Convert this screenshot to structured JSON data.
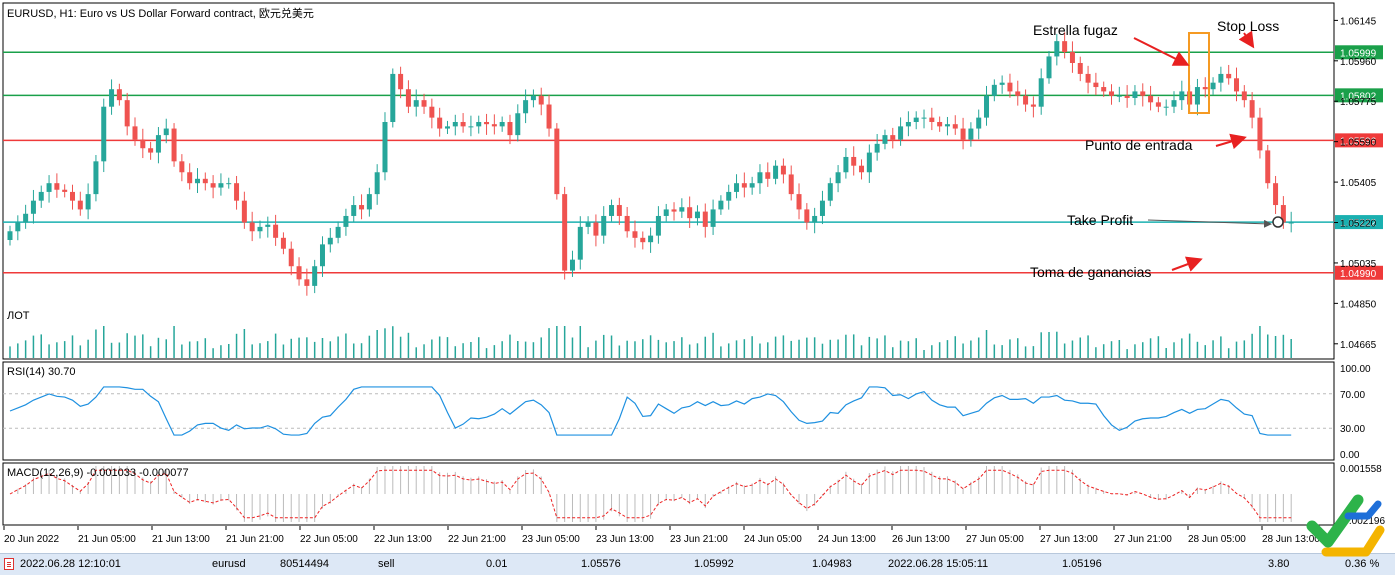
{
  "chart_header": "EURUSD, H1:  Euro vs US Dollar Forward contract, 欧元兑美元",
  "volume_label": "ЛОТ",
  "rsi_label": "RSI(14) 30.70",
  "macd_label": "MACD(12,26,9) -0.001033 -0.000077",
  "colors": {
    "bull": "#26a69a",
    "bear": "#ef5350",
    "green_line": "#1aa04a",
    "red_line": "#ef3a3a",
    "teal_line": "#1ab0b0",
    "rsi": "#1e90e0",
    "macd_signal": "#ee2222",
    "macd_hist": "#bbbbbb",
    "annotation_box": "#f59a23",
    "arrow": "#e82020"
  },
  "price_axis": {
    "ticks": [
      "1.06145",
      "1.05960",
      "1.05775",
      "1.05590",
      "1.05405",
      "1.05220",
      "1.05035",
      "1.04850",
      "1.04665"
    ],
    "ylim": [
      1.046,
      1.0622
    ]
  },
  "rsi_axis": {
    "ticks": [
      "100.00",
      "70.00",
      "30.00",
      "0.00"
    ],
    "levels": [
      70,
      30
    ]
  },
  "macd_axis": {
    "ticks": [
      "0.001558",
      "-0.002196"
    ]
  },
  "horizontal_levels": [
    {
      "price": 1.05999,
      "label": "1.05999",
      "type": "green"
    },
    {
      "price": 1.05802,
      "label": "1.05802",
      "type": "green"
    },
    {
      "price": 1.05596,
      "label": "1.05596",
      "type": "red"
    },
    {
      "price": 1.05222,
      "label": "1.05222",
      "type": "teal"
    },
    {
      "price": 1.0499,
      "label": "1.04990",
      "type": "red"
    }
  ],
  "annotations": {
    "shooting_star": "Estrella fugaz",
    "stop_loss": "Stop Loss",
    "entry": "Punto de entrada",
    "take_profit": "Take Profit",
    "profit_taking": "Toma de ganancias"
  },
  "time_axis": [
    "20 Jun 2022",
    "21 Jun 05:00",
    "21 Jun 13:00",
    "21 Jun 21:00",
    "22 Jun 05:00",
    "22 Jun 13:00",
    "22 Jun 21:00",
    "23 Jun 05:00",
    "23 Jun 13:00",
    "23 Jun 21:00",
    "24 Jun 05:00",
    "24 Jun 13:00",
    "26 Jun 13:00",
    "27 Jun 05:00",
    "27 Jun 13:00",
    "27 Jun 21:00",
    "28 Jun 05:00",
    "28 Jun 13:00"
  ],
  "status": {
    "time_open": "2022.06.28 12:10:01",
    "symbol": "eurusd",
    "ticket": "80514494",
    "type": "sell",
    "volume": "0.01",
    "open_price": "1.05576",
    "sl": "1.05992",
    "tp": "1.04983",
    "time_close": "2022.06.28 15:05:11",
    "close_price": "1.05196",
    "profit": "3.80",
    "percent": "0.36 %"
  },
  "chart_data": {
    "type": "candlestick",
    "symbol": "EURUSD",
    "timeframe": "H1",
    "close": [
      1.0518,
      1.0522,
      1.0526,
      1.0532,
      1.0536,
      1.054,
      1.0537,
      1.0536,
      1.0532,
      1.0528,
      1.0535,
      1.055,
      1.0575,
      1.0583,
      1.0578,
      1.0566,
      1.056,
      1.0556,
      1.0554,
      1.0562,
      1.0565,
      1.055,
      1.0545,
      1.054,
      1.0542,
      1.054,
      1.0538,
      1.054,
      1.054,
      1.0532,
      1.0522,
      1.0518,
      1.052,
      1.0521,
      1.0515,
      1.051,
      1.0502,
      1.0496,
      1.0493,
      1.0502,
      1.0512,
      1.0515,
      1.052,
      1.0525,
      1.053,
      1.0528,
      1.0535,
      1.0545,
      1.0568,
      1.059,
      1.0583,
      1.0575,
      1.0578,
      1.0575,
      1.057,
      1.0565,
      1.0566,
      1.0568,
      1.0566,
      1.0566,
      1.0568,
      1.0567,
      1.0566,
      1.0568,
      1.0562,
      1.0572,
      1.0578,
      1.058,
      1.0576,
      1.0565,
      1.0535,
      1.05,
      1.0505,
      1.052,
      1.0522,
      1.0516,
      1.0525,
      1.053,
      1.0525,
      1.0518,
      1.0515,
      1.0513,
      1.0516,
      1.0525,
      1.0528,
      1.0527,
      1.0529,
      1.0524,
      1.0527,
      1.052,
      1.0528,
      1.0532,
      1.0536,
      1.054,
      1.0538,
      1.054,
      1.0545,
      1.0542,
      1.0548,
      1.0544,
      1.0535,
      1.0528,
      1.0522,
      1.0525,
      1.0532,
      1.054,
      1.0545,
      1.0552,
      1.0548,
      1.0545,
      1.0554,
      1.0558,
      1.0562,
      1.056,
      1.0566,
      1.0568,
      1.057,
      1.057,
      1.0568,
      1.0566,
      1.0567,
      1.0565,
      1.056,
      1.0565,
      1.057,
      1.058,
      1.0585,
      1.0586,
      1.0582,
      1.058,
      1.0576,
      1.0575,
      1.0588,
      1.0598,
      1.0605,
      1.06,
      1.0595,
      1.059,
      1.0586,
      1.0584,
      1.0582,
      1.058,
      1.058,
      1.0579,
      1.0582,
      1.058,
      1.0577,
      1.0575,
      1.0575,
      1.0578,
      1.0582,
      1.0576,
      1.0584,
      1.0583,
      1.0586,
      1.059,
      1.0588,
      1.0582,
      1.0578,
      1.057,
      1.0555,
      1.054,
      1.053,
      1.0522,
      1.0522
    ]
  }
}
